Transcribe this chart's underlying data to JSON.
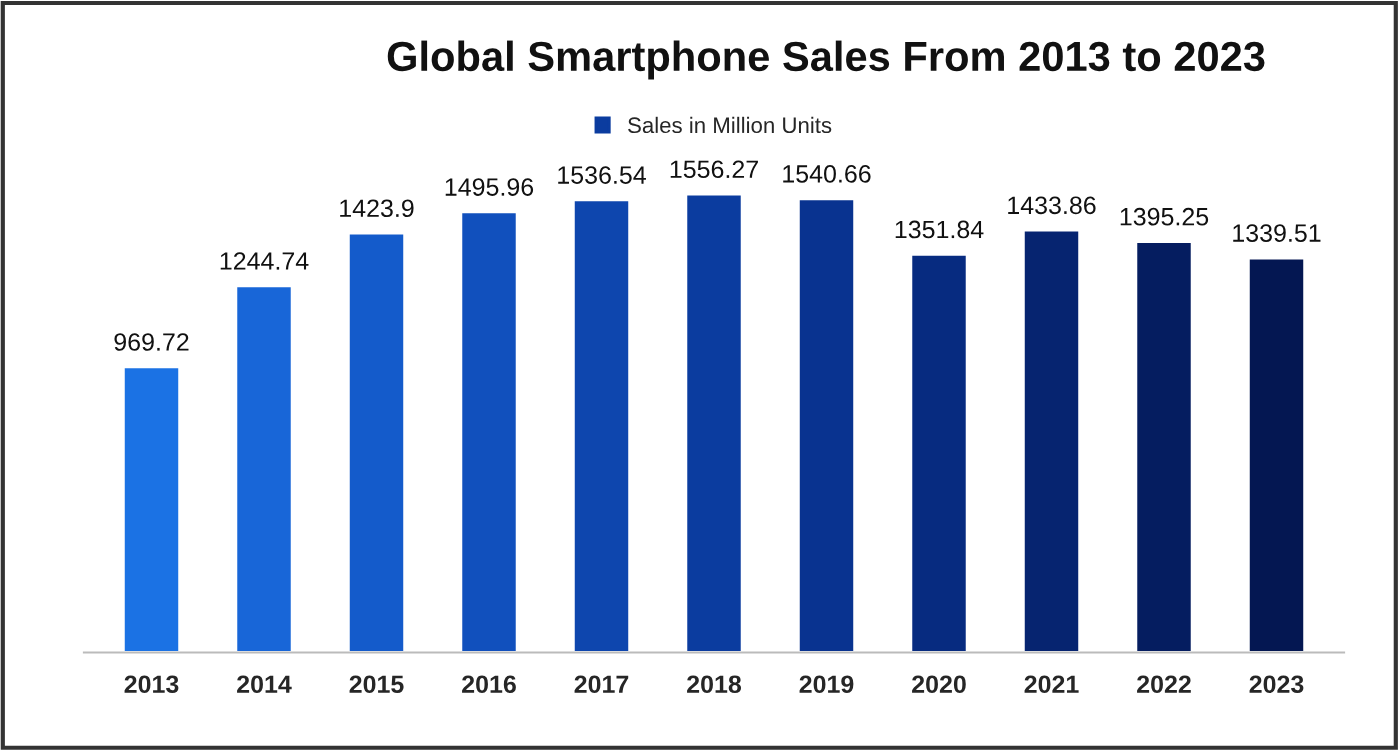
{
  "chart_data": {
    "type": "bar",
    "title": "Global Smartphone Sales From 2013 to 2023",
    "categories": [
      "2013",
      "2014",
      "2015",
      "2016",
      "2017",
      "2018",
      "2019",
      "2020",
      "2021",
      "2022",
      "2023"
    ],
    "series": [
      {
        "name": "Sales in Million Units",
        "values": [
          969.72,
          1244.74,
          1423.9,
          1495.96,
          1536.54,
          1556.27,
          1540.66,
          1351.84,
          1433.86,
          1395.25,
          1339.51
        ],
        "colors": [
          "#1b72e4",
          "#1866d8",
          "#145bcb",
          "#1150bd",
          "#0e46ae",
          "#0b3c9f",
          "#093390",
          "#072b80",
          "#062470",
          "#051d60",
          "#041752"
        ]
      }
    ],
    "data_labels": true,
    "legend": "top",
    "grid": false
  }
}
